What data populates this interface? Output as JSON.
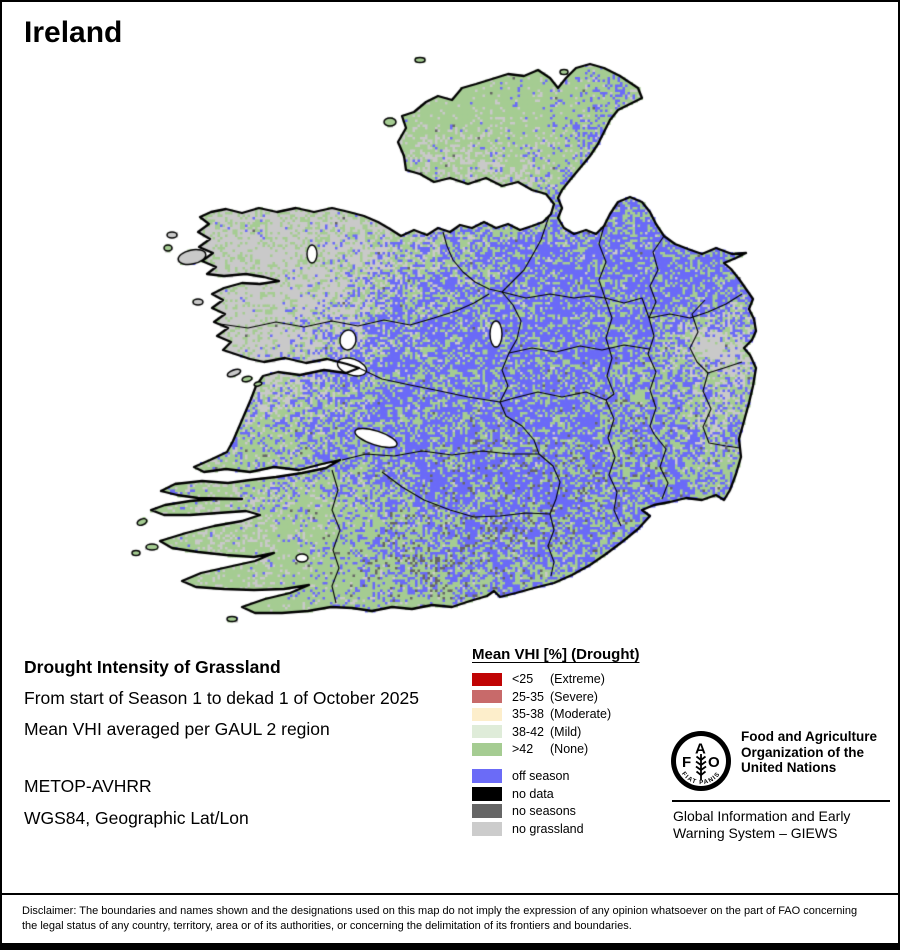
{
  "title": "Ireland",
  "info": {
    "line1": "Drought Intensity of Grassland",
    "line2": "From start of Season 1 to dekad 1 of October 2025",
    "line3": "Mean VHI averaged per GAUL 2 region",
    "sensor": "METOP-AVHRR",
    "projection": "WGS84, Geographic Lat/Lon"
  },
  "legend": {
    "title": "Mean VHI [%] (Drought)",
    "classes": [
      {
        "value": "<25",
        "severity": "(Extreme)",
        "color": "#c00404"
      },
      {
        "value": "25-35",
        "severity": "(Severe)",
        "color": "#c86a6a"
      },
      {
        "value": "35-38",
        "severity": "(Moderate)",
        "color": "#fdeecb"
      },
      {
        "value": "38-42",
        "severity": "(Mild)",
        "color": "#dfecd9"
      },
      {
        "value": ">42",
        "severity": "(None)",
        "color": "#a5cc92"
      }
    ],
    "statuses": [
      {
        "label": "off season",
        "color": "#6b6bf7"
      },
      {
        "label": "no data",
        "color": "#000000"
      },
      {
        "label": "no seasons",
        "color": "#666666"
      },
      {
        "label": "no grassland",
        "color": "#cccccc"
      }
    ]
  },
  "fao": {
    "letters": [
      "F",
      "A",
      "O"
    ],
    "motto": "FIAT PANIS",
    "org_name": [
      "Food and Agriculture",
      "Organization of the",
      "United Nations"
    ],
    "giews": [
      "Global Information and Early",
      "Warning System – GIEWS"
    ]
  },
  "disclaimer": "Disclaimer: The boundaries and names shown and the designations used on this map do not imply the expression of any opinion whatsoever on the part of FAO concerning the legal status of any country, territory, area or of its authorities, or concerning the delimitation of its frontiers and boundaries.",
  "map": {
    "region": "Ireland",
    "colors": {
      "off_season": "#6b6bf7",
      "grass_none": "#a5cc92",
      "no_grassland": "#c9c9c9",
      "no_seasons": "#666666",
      "water": "#ffffff",
      "boundary": "#000000"
    }
  }
}
